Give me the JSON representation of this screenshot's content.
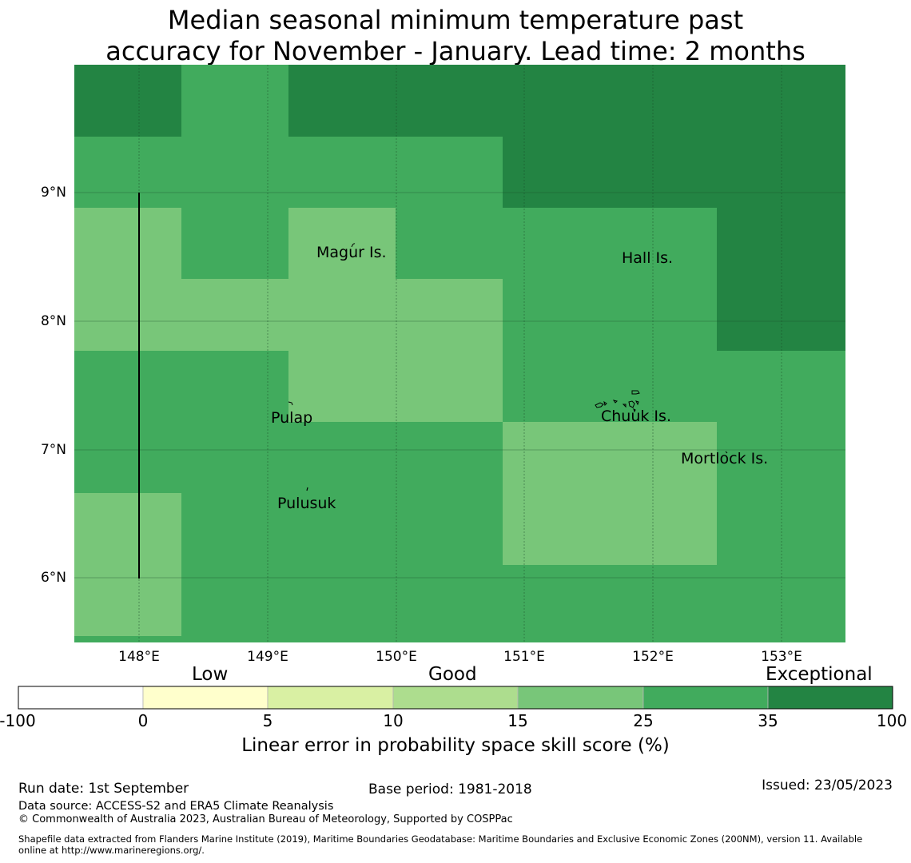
{
  "title": {
    "line1": "Median seasonal minimum temperature past",
    "line2": "accuracy for November - January. Lead time: 2 months"
  },
  "map": {
    "lon_ticks": [
      "148°E",
      "149°E",
      "150°E",
      "151°E",
      "152°E",
      "153°E"
    ],
    "lat_ticks": [
      "9°N",
      "8°N",
      "7°N",
      "6°N"
    ],
    "places": {
      "magur": "Magur Is.",
      "hall": "Hall Is.",
      "pulap": "Pulap",
      "chuuk": "Chuuk Is.",
      "mortlock": "Mortlock Is.",
      "pulusuk": "Pulusuk"
    },
    "class_colors": {
      "class_15_25": "#78c679",
      "class_25_35": "#41ab5d",
      "class_35_100": "#238443"
    }
  },
  "colorbar": {
    "categories": {
      "low": "Low",
      "good": "Good",
      "exceptional": "Exceptional"
    },
    "ticks": [
      "-100",
      "0",
      "5",
      "10",
      "15",
      "25",
      "35",
      "100"
    ],
    "colors": [
      "#ffffff",
      "#ffffcc",
      "#d9f0a3",
      "#addd8e",
      "#78c679",
      "#41ab5d",
      "#238443"
    ],
    "label": "Linear error in probability space skill score (%)"
  },
  "footer": {
    "run_date": "Run date: 1st September",
    "base_period": "Base period: 1981-2018",
    "issued": "Issued: 23/05/2023",
    "data_source": "Data source: ACCESS-S2 and ERA5 Climate Reanalysis",
    "copyright": "© Commonwealth of Australia 2023, Australian Bureau of Meteorology, Supported by COSPPac",
    "shapefile_line1": "Shapefile data extracted from Flanders Marine Institute (2019), Maritime Boundaries Geodatabase: Maritime Boundaries and Exclusive Economic Zones (200NM), version 11. Available",
    "shapefile_line2": "online at http://www.marineregions.org/."
  }
}
